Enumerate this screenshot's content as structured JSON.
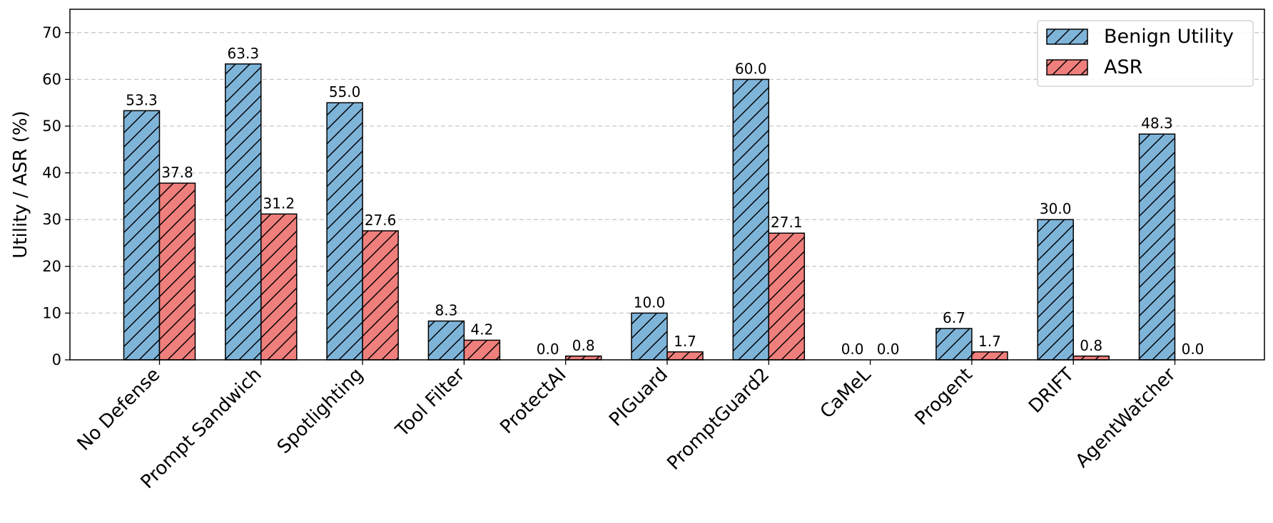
{
  "chart_data": {
    "type": "bar",
    "categories": [
      "No Defense",
      "Prompt Sandwich",
      "Spotlighting",
      "Tool Filter",
      "ProtectAI",
      "PIGuard",
      "PromptGuard2",
      "CaMeL",
      "Progent",
      "DRIFT",
      "AgentWatcher"
    ],
    "series": [
      {
        "name": "Benign Utility",
        "color": "#7fb4d9",
        "values": [
          53.3,
          63.3,
          55.0,
          8.3,
          0.0,
          10.0,
          60.0,
          0.0,
          6.7,
          30.0,
          48.3
        ]
      },
      {
        "name": "ASR",
        "color": "#ef7f7c",
        "values": [
          37.8,
          31.2,
          27.6,
          4.2,
          0.8,
          1.7,
          27.1,
          0.0,
          1.7,
          0.8,
          0.0
        ]
      }
    ],
    "value_labels": [
      [
        "53.3",
        "63.3",
        "55.0",
        "8.3",
        "0.0",
        "10.0",
        "60.0",
        "0.0",
        "6.7",
        "30.0",
        "48.3"
      ],
      [
        "37.8",
        "31.2",
        "27.6",
        "4.2",
        "0.8",
        "1.7",
        "27.1",
        "0.0",
        "1.7",
        "0.8",
        "0.0"
      ]
    ],
    "xlabel": "",
    "ylabel": "Utility / ASR (%)",
    "ylim": [
      0,
      75
    ],
    "yticks": [
      0,
      10,
      20,
      30,
      40,
      50,
      60,
      70
    ],
    "ytick_labels": [
      "0",
      "10",
      "20",
      "30",
      "40",
      "50",
      "60",
      "70"
    ],
    "hatch": "diagonal",
    "grid": "horizontal-dashed",
    "legend_position": "top-right"
  }
}
